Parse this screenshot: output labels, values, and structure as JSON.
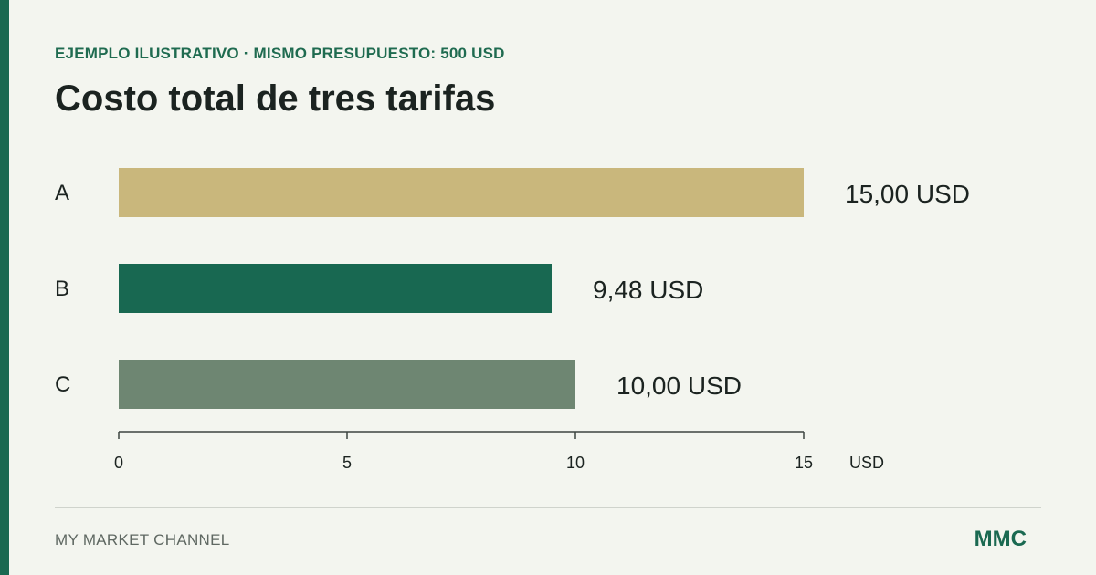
{
  "header": {
    "eyebrow": "EJEMPLO ILUSTRATIVO · MISMO PRESUPUESTO: 500 USD",
    "title": "Costo total de tres tarifas"
  },
  "footer": {
    "brand_name": "MY MARKET CHANNEL",
    "brand_logo": "MMC"
  },
  "colors": {
    "accent": "#1a6951",
    "background": "#f3f5ef"
  },
  "chart_data": {
    "type": "bar",
    "orientation": "horizontal",
    "categories": [
      "A",
      "B",
      "C"
    ],
    "values": [
      15.0,
      9.48,
      10.0
    ],
    "value_labels": [
      "15,00 USD",
      "9,48 USD",
      "10,00 USD"
    ],
    "bar_colors": [
      "#c9b77c",
      "#186851",
      "#6e8672"
    ],
    "xlim": [
      0,
      15
    ],
    "xticks": [
      0,
      5,
      10,
      15
    ],
    "xtick_labels": [
      "0",
      "5",
      "10",
      "15"
    ],
    "xlabel": "USD",
    "grid": false,
    "legend": "none"
  }
}
